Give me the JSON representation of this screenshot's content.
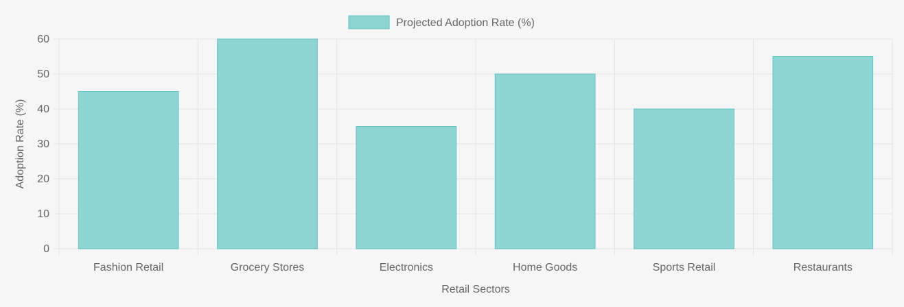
{
  "chart_data": {
    "type": "bar",
    "categories": [
      "Fashion Retail",
      "Grocery Stores",
      "Electronics",
      "Home Goods",
      "Sports Retail",
      "Restaurants"
    ],
    "series": [
      {
        "name": "Projected Adoption Rate (%)",
        "values": [
          45,
          60,
          35,
          50,
          40,
          55
        ]
      }
    ],
    "xlabel": "Retail Sectors",
    "ylabel": "Adoption Rate (%)",
    "ylim": [
      0,
      60
    ],
    "yticks": [
      0,
      10,
      20,
      30,
      40,
      50,
      60
    ],
    "grid": true,
    "legend": "top-center",
    "colors": {
      "bar_fill": "#8fd5d4",
      "bar_stroke": "#5fc3c2",
      "grid": "#e2e2e2",
      "text": "#666666",
      "background": "#f6f6f6"
    }
  }
}
